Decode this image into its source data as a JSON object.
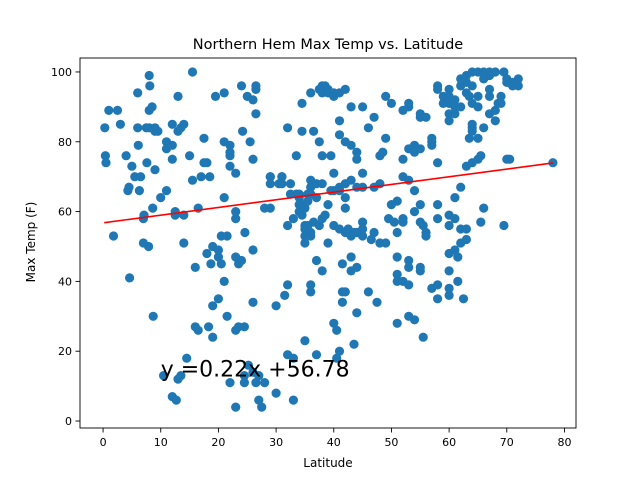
{
  "chart_data": {
    "type": "scatter",
    "title": "Northern Hem Max Temp vs. Latitude",
    "xlabel": "Latitude",
    "ylabel": "Max Temp (F)",
    "xlim": [
      -4,
      82
    ],
    "ylim": [
      -2,
      104
    ],
    "xticks": [
      0,
      10,
      20,
      30,
      40,
      50,
      60,
      70,
      80
    ],
    "xtick_labels": [
      "0",
      "10",
      "20",
      "30",
      "40",
      "50",
      "60",
      "70",
      "80"
    ],
    "yticks": [
      0,
      20,
      40,
      60,
      80,
      100
    ],
    "ytick_labels": [
      "0",
      "20",
      "40",
      "60",
      "80",
      "100"
    ],
    "grid": false,
    "point_color": "#1f77b4",
    "regression": {
      "equation_label": "y =0.22x +56.78",
      "slope": 0.22,
      "intercept": 56.78,
      "x_range": [
        0.2,
        78
      ],
      "color": "#ff0000",
      "label_at": [
        10,
        15
      ]
    },
    "points": [
      [
        0.3,
        84
      ],
      [
        0.4,
        76
      ],
      [
        0.5,
        74
      ],
      [
        1,
        89
      ],
      [
        1.8,
        53
      ],
      [
        2.5,
        89
      ],
      [
        3,
        85
      ],
      [
        4,
        76
      ],
      [
        4.3,
        66
      ],
      [
        4.5,
        67
      ],
      [
        5,
        73
      ],
      [
        4.6,
        41
      ],
      [
        5.5,
        70
      ],
      [
        6,
        94
      ],
      [
        6.1,
        79
      ],
      [
        6,
        84
      ],
      [
        6.3,
        66
      ],
      [
        6.5,
        70
      ],
      [
        7,
        58
      ],
      [
        7.1,
        59
      ],
      [
        7,
        51
      ],
      [
        7.5,
        84
      ],
      [
        7.6,
        74
      ],
      [
        7.9,
        50
      ],
      [
        8,
        89
      ],
      [
        8,
        84
      ],
      [
        8,
        99
      ],
      [
        8.1,
        96
      ],
      [
        8.5,
        90
      ],
      [
        8.6,
        61
      ],
      [
        8.7,
        30
      ],
      [
        9,
        84
      ],
      [
        9,
        83
      ],
      [
        9,
        72
      ],
      [
        9.5,
        83
      ],
      [
        10,
        64
      ],
      [
        10.5,
        13
      ],
      [
        11,
        66
      ],
      [
        11,
        80
      ],
      [
        11,
        78
      ],
      [
        12,
        85
      ],
      [
        12,
        79
      ],
      [
        12,
        75
      ],
      [
        12,
        7
      ],
      [
        12.5,
        59
      ],
      [
        12.5,
        60
      ],
      [
        12.7,
        6
      ],
      [
        13,
        93
      ],
      [
        13,
        12
      ],
      [
        13,
        83
      ],
      [
        13.5,
        13
      ],
      [
        13.5,
        84
      ],
      [
        14,
        85
      ],
      [
        14,
        59
      ],
      [
        14,
        51
      ],
      [
        14.5,
        18
      ],
      [
        15,
        76
      ],
      [
        15.5,
        100
      ],
      [
        15.5,
        69
      ],
      [
        16,
        27
      ],
      [
        16,
        44
      ],
      [
        16.5,
        61
      ],
      [
        16.5,
        26
      ],
      [
        17,
        70
      ],
      [
        17.5,
        81
      ],
      [
        17.5,
        74
      ],
      [
        18,
        74
      ],
      [
        18,
        48
      ],
      [
        18.3,
        27
      ],
      [
        18.5,
        70
      ],
      [
        18.7,
        45
      ],
      [
        19,
        24
      ],
      [
        19,
        33
      ],
      [
        19,
        50
      ],
      [
        19.5,
        93
      ],
      [
        20,
        35
      ],
      [
        20,
        47
      ],
      [
        20,
        49
      ],
      [
        20.5,
        45
      ],
      [
        20.5,
        53
      ],
      [
        21,
        94
      ],
      [
        21,
        64
      ],
      [
        21,
        80
      ],
      [
        21,
        40
      ],
      [
        21.5,
        53
      ],
      [
        21.5,
        30
      ],
      [
        22,
        79
      ],
      [
        22,
        73
      ],
      [
        22,
        11
      ],
      [
        22,
        76
      ],
      [
        22,
        77
      ],
      [
        23,
        71
      ],
      [
        23,
        47
      ],
      [
        23,
        58
      ],
      [
        23,
        60
      ],
      [
        23,
        4
      ],
      [
        23.5,
        45
      ],
      [
        23,
        26
      ],
      [
        23.5,
        27
      ],
      [
        24,
        46
      ],
      [
        24,
        96
      ],
      [
        24.2,
        83
      ],
      [
        24.5,
        27
      ],
      [
        24.5,
        13
      ],
      [
        24.5,
        11
      ],
      [
        24.6,
        54
      ],
      [
        25,
        93
      ],
      [
        25.2,
        16
      ],
      [
        25.5,
        80
      ],
      [
        26,
        49
      ],
      [
        26,
        75
      ],
      [
        26,
        34
      ],
      [
        26,
        92
      ],
      [
        26,
        14
      ],
      [
        26.5,
        11
      ],
      [
        26.5,
        95
      ],
      [
        26.5,
        96
      ],
      [
        26.5,
        88
      ],
      [
        27,
        6
      ],
      [
        27,
        13
      ],
      [
        27.5,
        4
      ],
      [
        28,
        11
      ],
      [
        28,
        61
      ],
      [
        29,
        70
      ],
      [
        29,
        68
      ],
      [
        29,
        70
      ],
      [
        29,
        61
      ],
      [
        30,
        33
      ],
      [
        30,
        8
      ],
      [
        30.5,
        68
      ],
      [
        31,
        70
      ],
      [
        31,
        70
      ],
      [
        31,
        68
      ],
      [
        31.5,
        36
      ],
      [
        32,
        39
      ],
      [
        32,
        56
      ],
      [
        32,
        19
      ],
      [
        32,
        84
      ],
      [
        32.5,
        68
      ],
      [
        32.5,
        65
      ],
      [
        33,
        6
      ],
      [
        33,
        58
      ],
      [
        33,
        18
      ],
      [
        33.5,
        65
      ],
      [
        33.5,
        76
      ],
      [
        34,
        65
      ],
      [
        34,
        62
      ],
      [
        34,
        64
      ],
      [
        34,
        60
      ],
      [
        34.5,
        91
      ],
      [
        34.5,
        83
      ],
      [
        34.5,
        59
      ],
      [
        34.5,
        62
      ],
      [
        35,
        23
      ],
      [
        35,
        55
      ],
      [
        35,
        51
      ],
      [
        35,
        56
      ],
      [
        35,
        53
      ],
      [
        35,
        61
      ],
      [
        35.5,
        65
      ],
      [
        35.5,
        56
      ],
      [
        35.5,
        63
      ],
      [
        36,
        94
      ],
      [
        36,
        69
      ],
      [
        36,
        67
      ],
      [
        36,
        65
      ],
      [
        36,
        54
      ],
      [
        36,
        53
      ],
      [
        36,
        37
      ],
      [
        36,
        39
      ],
      [
        36.5,
        68
      ],
      [
        36.5,
        57
      ],
      [
        36.5,
        83
      ],
      [
        37,
        46
      ],
      [
        37,
        19
      ],
      [
        37,
        64
      ],
      [
        37,
        68
      ],
      [
        37.5,
        95
      ],
      [
        37.5,
        80
      ],
      [
        37.5,
        56
      ],
      [
        38,
        43
      ],
      [
        38,
        76
      ],
      [
        38,
        94
      ],
      [
        38,
        96
      ],
      [
        38,
        58
      ],
      [
        38,
        68
      ],
      [
        38.5,
        96
      ],
      [
        38.5,
        59
      ],
      [
        39,
        51
      ],
      [
        39,
        95
      ],
      [
        39,
        62
      ],
      [
        39,
        94
      ],
      [
        39.5,
        76
      ],
      [
        39.5,
        66
      ],
      [
        40,
        28
      ],
      [
        40,
        66
      ],
      [
        40,
        94
      ],
      [
        40,
        56
      ],
      [
        40,
        93
      ],
      [
        40,
        71
      ],
      [
        40.5,
        26
      ],
      [
        40.5,
        18
      ],
      [
        41,
        86
      ],
      [
        41,
        94
      ],
      [
        41,
        82
      ],
      [
        41,
        55
      ],
      [
        41,
        67
      ],
      [
        41,
        66
      ],
      [
        41,
        20
      ],
      [
        41.5,
        45
      ],
      [
        41.5,
        34
      ],
      [
        41.5,
        37
      ],
      [
        42,
        95
      ],
      [
        42,
        80
      ],
      [
        42,
        64
      ],
      [
        42,
        68
      ],
      [
        42,
        61
      ],
      [
        42,
        54
      ],
      [
        42,
        37
      ],
      [
        42.5,
        55
      ],
      [
        43,
        43
      ],
      [
        43,
        53
      ],
      [
        43,
        79
      ],
      [
        43,
        90
      ],
      [
        43,
        69
      ],
      [
        43.5,
        22
      ],
      [
        43.5,
        54
      ],
      [
        43,
        47
      ],
      [
        44,
        31
      ],
      [
        44,
        77
      ],
      [
        44,
        75
      ],
      [
        44,
        67
      ],
      [
        44,
        54
      ],
      [
        44,
        54
      ],
      [
        44,
        44
      ],
      [
        45,
        57
      ],
      [
        45,
        90
      ],
      [
        45,
        67
      ],
      [
        45,
        53
      ],
      [
        45,
        55
      ],
      [
        45,
        71
      ],
      [
        46,
        37
      ],
      [
        46,
        84
      ],
      [
        46.5,
        52
      ],
      [
        47,
        87
      ],
      [
        47,
        67
      ],
      [
        47,
        54
      ],
      [
        47.5,
        34
      ],
      [
        48,
        68
      ],
      [
        48,
        76
      ],
      [
        48,
        51
      ],
      [
        48.5,
        77
      ],
      [
        49,
        51
      ],
      [
        49,
        93
      ],
      [
        49,
        81
      ],
      [
        49.5,
        58
      ],
      [
        50,
        62
      ],
      [
        50,
        91
      ],
      [
        50.5,
        57
      ],
      [
        51,
        42
      ],
      [
        51,
        40
      ],
      [
        51,
        28
      ],
      [
        51,
        63
      ],
      [
        51,
        54
      ],
      [
        51,
        47
      ],
      [
        52,
        58
      ],
      [
        52,
        89
      ],
      [
        52,
        75
      ],
      [
        52,
        40
      ],
      [
        52,
        57
      ],
      [
        52,
        70
      ],
      [
        53,
        39
      ],
      [
        53,
        90
      ],
      [
        53,
        78
      ],
      [
        53,
        69
      ],
      [
        53,
        46
      ],
      [
        53,
        30
      ],
      [
        53,
        91
      ],
      [
        53,
        44
      ],
      [
        54,
        66
      ],
      [
        54,
        29
      ],
      [
        54,
        79
      ],
      [
        54,
        77
      ],
      [
        54,
        60
      ],
      [
        55,
        62
      ],
      [
        55,
        44
      ],
      [
        55,
        57
      ],
      [
        55,
        87
      ],
      [
        55,
        78
      ],
      [
        55,
        88
      ],
      [
        55,
        43
      ],
      [
        55.5,
        24
      ],
      [
        55.5,
        56
      ],
      [
        56,
        54
      ],
      [
        56,
        53
      ],
      [
        56,
        87
      ],
      [
        57,
        80
      ],
      [
        57,
        38
      ],
      [
        57,
        79
      ],
      [
        57,
        81
      ],
      [
        58,
        62
      ],
      [
        58,
        58
      ],
      [
        58,
        74
      ],
      [
        58,
        35
      ],
      [
        58,
        39
      ],
      [
        58,
        95
      ],
      [
        58,
        96
      ],
      [
        59,
        93
      ],
      [
        59,
        91
      ],
      [
        60,
        91
      ],
      [
        60,
        59
      ],
      [
        60,
        56
      ],
      [
        60,
        93
      ],
      [
        60,
        88
      ],
      [
        60,
        86
      ],
      [
        60,
        36
      ],
      [
        60,
        43
      ],
      [
        60,
        48
      ],
      [
        60,
        38
      ],
      [
        60,
        95
      ],
      [
        61,
        58
      ],
      [
        61,
        92
      ],
      [
        61,
        88
      ],
      [
        61,
        90
      ],
      [
        61,
        64
      ],
      [
        61,
        49
      ],
      [
        61.5,
        40
      ],
      [
        61.5,
        47
      ],
      [
        62,
        90
      ],
      [
        62,
        51
      ],
      [
        62,
        55
      ],
      [
        62,
        96
      ],
      [
        62,
        67
      ],
      [
        62,
        98
      ],
      [
        62.5,
        35
      ],
      [
        63,
        99
      ],
      [
        63,
        97
      ],
      [
        63,
        94
      ],
      [
        63,
        73
      ],
      [
        63,
        55
      ],
      [
        63,
        52
      ],
      [
        63.5,
        81
      ],
      [
        63.5,
        93
      ],
      [
        64,
        91
      ],
      [
        64,
        84
      ],
      [
        64,
        85
      ],
      [
        64,
        96
      ],
      [
        64,
        100
      ],
      [
        64,
        83
      ],
      [
        64,
        74
      ],
      [
        65,
        81
      ],
      [
        65,
        75
      ],
      [
        65,
        90
      ],
      [
        65,
        93
      ],
      [
        65,
        100
      ],
      [
        65.5,
        57
      ],
      [
        65.5,
        76
      ],
      [
        66,
        100
      ],
      [
        66,
        61
      ],
      [
        66,
        84
      ],
      [
        66,
        98
      ],
      [
        67,
        99
      ],
      [
        67,
        100
      ],
      [
        67,
        93
      ],
      [
        67,
        88
      ],
      [
        67,
        95
      ],
      [
        68,
        100
      ],
      [
        68,
        86
      ],
      [
        68,
        89
      ],
      [
        68.5,
        91
      ],
      [
        69,
        91
      ],
      [
        69,
        93
      ],
      [
        69.5,
        56
      ],
      [
        69.5,
        100
      ],
      [
        70,
        75
      ],
      [
        70,
        98
      ],
      [
        70,
        97
      ],
      [
        70.5,
        75
      ],
      [
        71,
        96
      ],
      [
        71,
        97
      ],
      [
        72,
        98
      ],
      [
        72,
        96
      ],
      [
        78,
        74
      ]
    ]
  }
}
